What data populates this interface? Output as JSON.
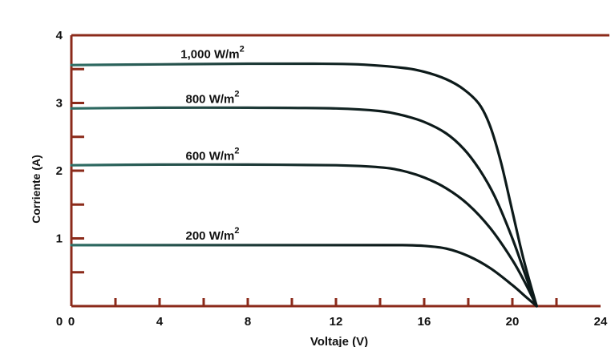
{
  "chart_data": {
    "type": "line",
    "title": "",
    "xlabel": "Voltaje (V)",
    "ylabel": "Corriente (A)",
    "xlim": [
      0,
      24
    ],
    "ylim": [
      0,
      4
    ],
    "x_ticks": [
      0,
      4,
      8,
      12,
      16,
      20,
      24
    ],
    "y_ticks": [
      1,
      2,
      3,
      4
    ],
    "grid": false,
    "legend": "none",
    "colors": {
      "axis": "#8b2a1a",
      "line": "#0d1a1a",
      "line_start": "#2f6f66",
      "text": "#111111"
    },
    "series": [
      {
        "name": "1,000 W/m2",
        "label_base": "1,000 W/m",
        "label_sup": "2",
        "x": [
          0,
          4,
          8,
          11,
          13,
          15,
          16,
          17,
          17.8,
          18.5,
          19,
          19.5,
          20,
          20.5,
          21.1
        ],
        "y": [
          3.56,
          3.57,
          3.58,
          3.58,
          3.57,
          3.52,
          3.46,
          3.35,
          3.2,
          2.98,
          2.65,
          2.1,
          1.4,
          0.7,
          0
        ]
      },
      {
        "name": "800 W/m2",
        "label_base": "800 W/m",
        "label_sup": "2",
        "x": [
          0,
          4,
          8,
          12,
          14,
          15,
          16,
          17,
          17.8,
          18.5,
          19.2,
          20,
          20.6,
          21.1
        ],
        "y": [
          2.92,
          2.93,
          2.93,
          2.92,
          2.88,
          2.82,
          2.72,
          2.55,
          2.32,
          2.02,
          1.62,
          1.0,
          0.45,
          0
        ]
      },
      {
        "name": "600 W/m2",
        "label_base": "600 W/m",
        "label_sup": "2",
        "x": [
          0,
          4,
          8,
          12,
          14,
          15,
          16,
          17,
          18,
          19,
          20,
          20.6,
          21.1
        ],
        "y": [
          2.08,
          2.09,
          2.09,
          2.08,
          2.05,
          2.0,
          1.9,
          1.74,
          1.5,
          1.15,
          0.68,
          0.33,
          0
        ]
      },
      {
        "name": "200 W/m2",
        "label_base": "200 W/m",
        "label_sup": "2",
        "x": [
          0,
          4,
          8,
          12,
          15,
          16,
          17,
          18,
          19,
          20,
          20.6,
          21.1
        ],
        "y": [
          0.9,
          0.9,
          0.9,
          0.9,
          0.9,
          0.89,
          0.85,
          0.74,
          0.56,
          0.31,
          0.14,
          0
        ]
      }
    ]
  }
}
